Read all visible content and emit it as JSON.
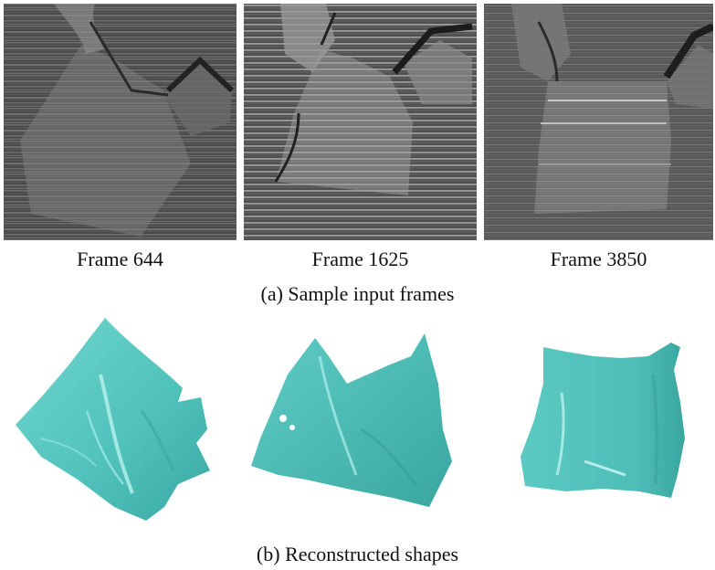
{
  "frames": [
    {
      "label": "Frame 644"
    },
    {
      "label": "Frame 1625"
    },
    {
      "label": "Frame 3850"
    }
  ],
  "captions": {
    "input": "(a) Sample input frames",
    "shapes": "(b) Reconstructed shapes"
  },
  "colors": {
    "cloth_shape": "#5cc9c2",
    "cloth_shape_dark": "#3aa6a0",
    "cloth_highlight": "#b8f1ed"
  }
}
